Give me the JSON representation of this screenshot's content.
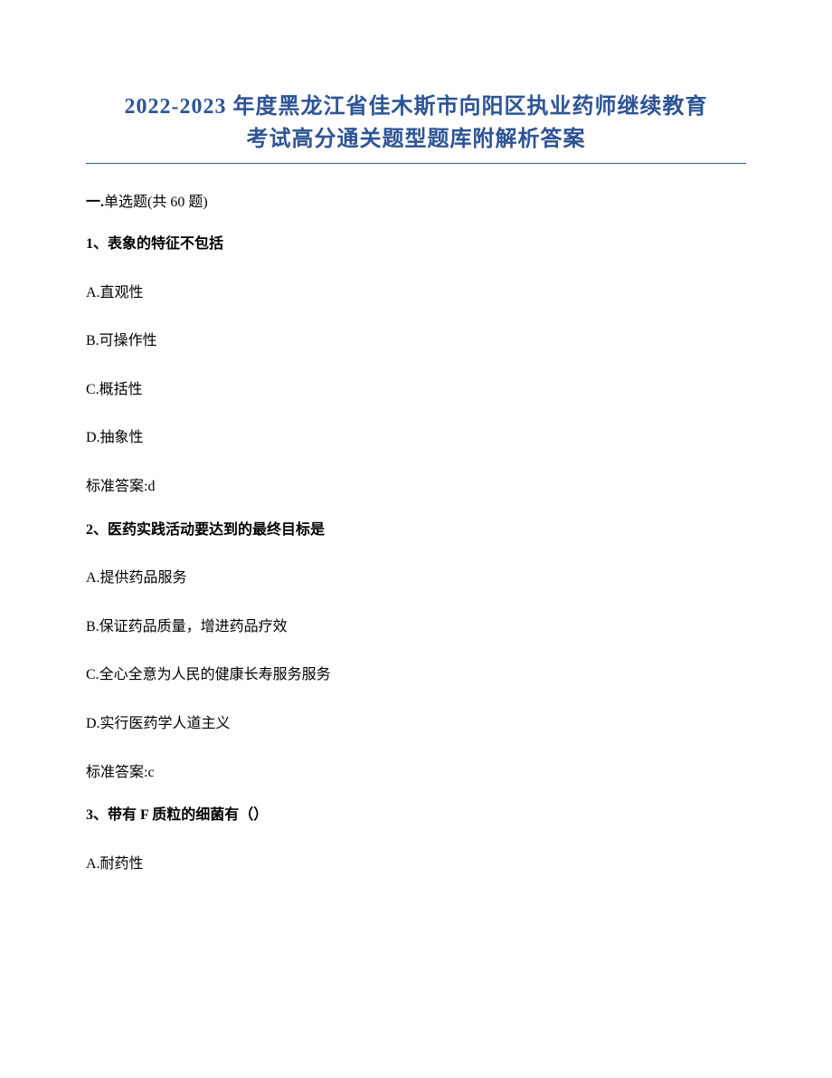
{
  "title": {
    "line1": "2022-2023 年度黑龙江省佳木斯市向阳区执业药师继续教育",
    "line2": "考试高分通关题型题库附解析答案",
    "color": "#2e5496",
    "fontsize": 24
  },
  "section": {
    "prefix": "一.",
    "label": "单选题(共 60 题)"
  },
  "questions": [
    {
      "number": "1、",
      "text": "表象的特征不包括",
      "options": [
        "A.直观性",
        "B.可操作性",
        "C.概括性",
        "D.抽象性"
      ],
      "answer_label": "标准答案:",
      "answer_value": "d"
    },
    {
      "number": "2、",
      "text": "医药实践活动要达到的最终目标是",
      "options": [
        "A.提供药品服务",
        "B.保证药品质量，增进药品疗效",
        "C.全心全意为人民的健康长寿服务服务",
        "D.实行医药学人道主义"
      ],
      "answer_label": "标准答案:",
      "answer_value": "c"
    },
    {
      "number": "3、",
      "text": "带有 F 质粒的细菌有（）",
      "options": [
        "A.耐药性"
      ],
      "answer_label": "",
      "answer_value": ""
    }
  ],
  "styles": {
    "body_bg": "#ffffff",
    "text_color": "#000000",
    "body_fontsize": 16
  }
}
